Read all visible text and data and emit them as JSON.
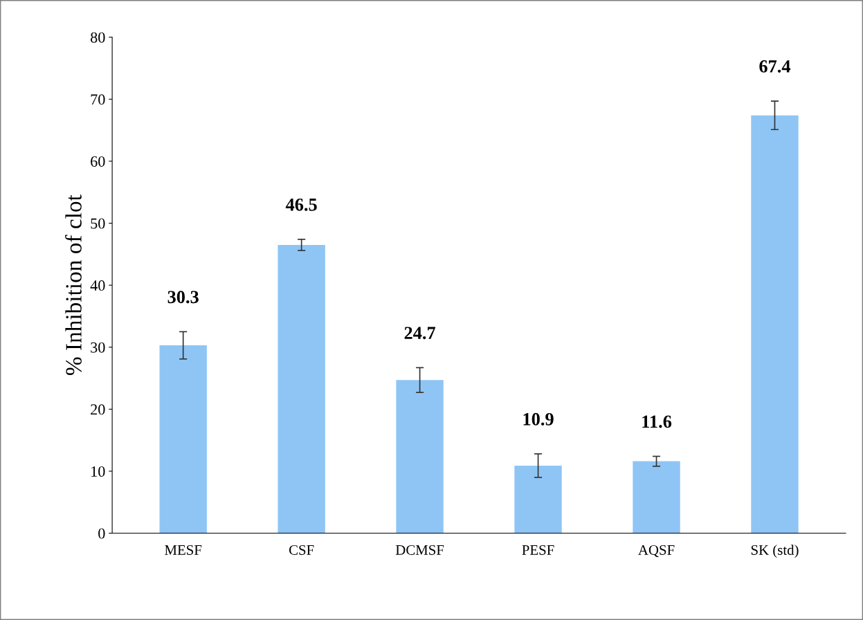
{
  "chart_data": {
    "type": "bar",
    "ylabel": "% Inhibition of clot",
    "categories": [
      "MESF",
      "CSF",
      "DCMSF",
      "PESF",
      "AQSF",
      "SK (std)"
    ],
    "values": [
      30.3,
      46.5,
      24.7,
      10.9,
      11.6,
      67.4
    ],
    "errors": [
      2.2,
      0.9,
      2.0,
      1.9,
      0.8,
      2.3
    ],
    "color": "#8ec5f5",
    "ylim": [
      0,
      80
    ],
    "yticks": [
      0,
      10,
      20,
      30,
      40,
      50,
      60,
      70,
      80
    ],
    "data_labels": true,
    "grid": false,
    "legend": false
  }
}
